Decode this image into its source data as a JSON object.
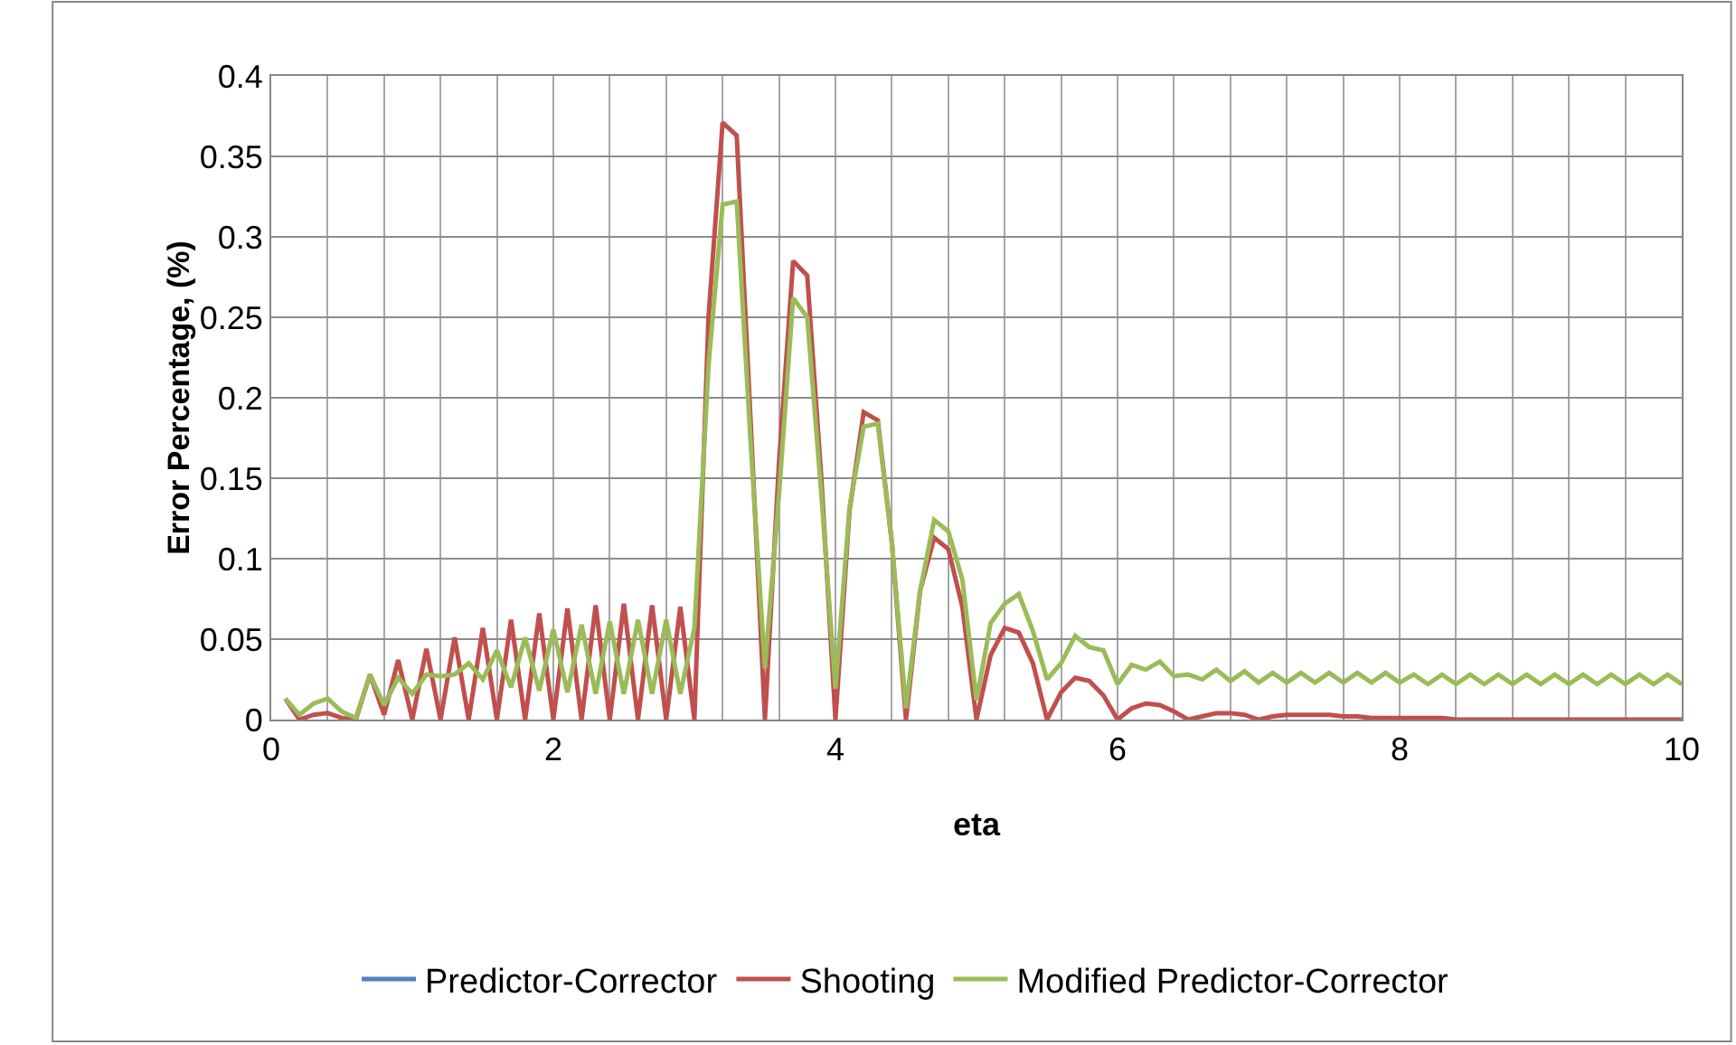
{
  "chart_data": {
    "type": "line",
    "xlabel": "eta",
    "ylabel": "Error Percentage, (%)",
    "x": [
      0.1,
      0.2,
      0.3,
      0.4,
      0.5,
      0.6,
      0.7,
      0.8,
      0.9,
      1.0,
      1.1,
      1.2,
      1.3,
      1.4,
      1.5,
      1.6,
      1.7,
      1.8,
      1.9,
      2.0,
      2.1,
      2.2,
      2.3,
      2.4,
      2.5,
      2.6,
      2.7,
      2.8,
      2.9,
      3.0,
      3.1,
      3.2,
      3.3,
      3.4,
      3.5,
      3.6,
      3.7,
      3.8,
      3.9,
      4.0,
      4.1,
      4.2,
      4.3,
      4.4,
      4.5,
      4.6,
      4.7,
      4.8,
      4.9,
      5.0,
      5.1,
      5.2,
      5.3,
      5.4,
      5.5,
      5.6,
      5.7,
      5.8,
      5.9,
      6.0,
      6.1,
      6.2,
      6.3,
      6.4,
      6.5,
      6.6,
      6.7,
      6.8,
      6.9,
      7.0,
      7.1,
      7.2,
      7.3,
      7.4,
      7.5,
      7.6,
      7.7,
      7.8,
      7.9,
      8.0,
      8.1,
      8.2,
      8.3,
      8.4,
      8.5,
      8.6,
      8.7,
      8.8,
      8.9,
      9.0,
      9.1,
      9.2,
      9.3,
      9.4,
      9.5,
      9.6,
      9.7,
      9.8,
      9.9,
      10.0
    ],
    "series": [
      {
        "name": "Predictor-Corrector",
        "color": "#4f81bd",
        "values": [
          null,
          null,
          null,
          null,
          null,
          null,
          null,
          null,
          null,
          null,
          null,
          null,
          null,
          null,
          null,
          null,
          null,
          null,
          null,
          null,
          null,
          null,
          null,
          null,
          null,
          null,
          null,
          null,
          null,
          null,
          null,
          null,
          null,
          null,
          null,
          null,
          null,
          null,
          null,
          null,
          null,
          null,
          null,
          null,
          null,
          null,
          null,
          null,
          null,
          null,
          null,
          null,
          null,
          null,
          null,
          null,
          null,
          null,
          null,
          null,
          null,
          null,
          null,
          null,
          null,
          null,
          null,
          null,
          null,
          null,
          null,
          null,
          null,
          null,
          null,
          null,
          null,
          null,
          null,
          null,
          null,
          null,
          null,
          null,
          null,
          null,
          null,
          null,
          null,
          null,
          null,
          null,
          null,
          null,
          null,
          null,
          null,
          null,
          null,
          null
        ]
      },
      {
        "name": "Shooting",
        "color": "#c0504d",
        "values": [
          0.013,
          0.0,
          0.003,
          0.004,
          0.001,
          0.0,
          0.028,
          0.003,
          0.037,
          0.0,
          0.044,
          0.0,
          0.051,
          0.0,
          0.057,
          0.0,
          0.062,
          0.0,
          0.066,
          0.0,
          0.069,
          0.0,
          0.071,
          0.0,
          0.072,
          0.0,
          0.071,
          0.0,
          0.07,
          0.0,
          0.25,
          0.371,
          0.363,
          0.183,
          0.0,
          0.16,
          0.285,
          0.276,
          0.15,
          0.0,
          0.13,
          0.191,
          0.186,
          0.11,
          0.0,
          0.08,
          0.113,
          0.106,
          0.07,
          0.0,
          0.04,
          0.057,
          0.054,
          0.035,
          0.0,
          0.017,
          0.026,
          0.024,
          0.015,
          0.0,
          0.007,
          0.01,
          0.009,
          0.005,
          0.0,
          0.002,
          0.004,
          0.004,
          0.003,
          0.0,
          0.002,
          0.003,
          0.003,
          0.003,
          0.003,
          0.002,
          0.002,
          0.001,
          0.001,
          0.001,
          0.001,
          0.001,
          0.001,
          0.0,
          0.0,
          0.0,
          0.0,
          0.0,
          0.0,
          0.0,
          0.0,
          0.0,
          0.0,
          0.0,
          0.0,
          0.0,
          0.0,
          0.0,
          0.0,
          0.0
        ]
      },
      {
        "name": "Modified Predictor-Corrector",
        "color": "#9bbb59",
        "values": [
          0.013,
          0.003,
          0.01,
          0.013,
          0.005,
          0.001,
          0.028,
          0.009,
          0.026,
          0.016,
          0.028,
          0.027,
          0.028,
          0.035,
          0.025,
          0.043,
          0.02,
          0.051,
          0.018,
          0.056,
          0.017,
          0.059,
          0.016,
          0.061,
          0.016,
          0.062,
          0.016,
          0.062,
          0.016,
          0.057,
          0.22,
          0.32,
          0.322,
          0.17,
          0.032,
          0.14,
          0.262,
          0.25,
          0.14,
          0.019,
          0.132,
          0.182,
          0.184,
          0.11,
          0.007,
          0.08,
          0.124,
          0.117,
          0.087,
          0.012,
          0.06,
          0.072,
          0.078,
          0.055,
          0.025,
          0.035,
          0.052,
          0.045,
          0.043,
          0.022,
          0.034,
          0.031,
          0.036,
          0.027,
          0.028,
          0.025,
          0.031,
          0.024,
          0.03,
          0.023,
          0.029,
          0.023,
          0.029,
          0.023,
          0.029,
          0.023,
          0.029,
          0.023,
          0.029,
          0.023,
          0.028,
          0.022,
          0.028,
          0.022,
          0.028,
          0.022,
          0.028,
          0.022,
          0.028,
          0.022,
          0.028,
          0.022,
          0.028,
          0.022,
          0.028,
          0.022,
          0.028,
          0.022,
          0.028,
          0.022
        ]
      }
    ],
    "xlim": [
      0,
      10
    ],
    "xticks": [
      0,
      {
        "value": 0.4,
        "label": null
      },
      {
        "value": 0.8,
        "label": null
      },
      {
        "value": 1.2,
        "label": null
      },
      {
        "value": 1.6,
        "label": null
      },
      2,
      {
        "value": 2.4,
        "label": null
      },
      {
        "value": 2.8,
        "label": null
      },
      {
        "value": 3.2,
        "label": null
      },
      {
        "value": 3.6,
        "label": null
      },
      4,
      {
        "value": 4.4,
        "label": null
      },
      {
        "value": 4.8,
        "label": null
      },
      {
        "value": 5.2,
        "label": null
      },
      {
        "value": 5.6,
        "label": null
      },
      6,
      {
        "value": 6.4,
        "label": null
      },
      {
        "value": 6.8,
        "label": null
      },
      {
        "value": 7.2,
        "label": null
      },
      {
        "value": 7.6,
        "label": null
      },
      8,
      {
        "value": 8.4,
        "label": null
      },
      {
        "value": 8.8,
        "label": null
      },
      {
        "value": 9.2,
        "label": null
      },
      {
        "value": 9.6,
        "label": null
      },
      10
    ],
    "ylim": [
      0,
      0.4
    ],
    "yticks": [
      0,
      0.05,
      0.1,
      0.15,
      0.2,
      0.25,
      0.3,
      0.35,
      0.4
    ],
    "grid": true,
    "legend": "bottom",
    "marker": "none",
    "line_style": "solid"
  }
}
